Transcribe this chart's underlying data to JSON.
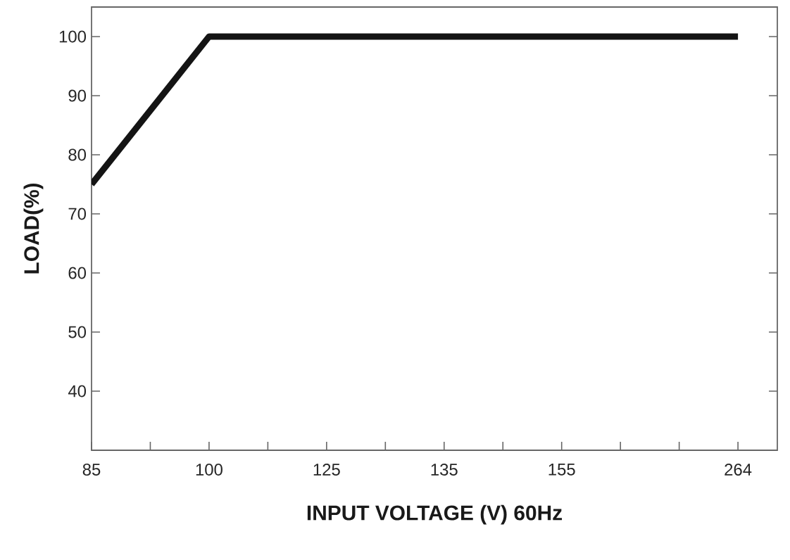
{
  "chart_data": {
    "type": "line",
    "xlabel": "INPUT VOLTAGE (V) 60Hz",
    "ylabel": "LOAD(%)",
    "categories": [
      "85",
      null,
      "100",
      null,
      "125",
      null,
      "135",
      null,
      "155",
      null,
      null,
      "264"
    ],
    "values": [
      75,
      null,
      100,
      100,
      100,
      100,
      100,
      100,
      100,
      100,
      100,
      100
    ],
    "color": "#141414",
    "ylim": [
      30,
      105
    ],
    "yticks": [
      40,
      50,
      60,
      70,
      80,
      90,
      100
    ],
    "grid": false
  }
}
